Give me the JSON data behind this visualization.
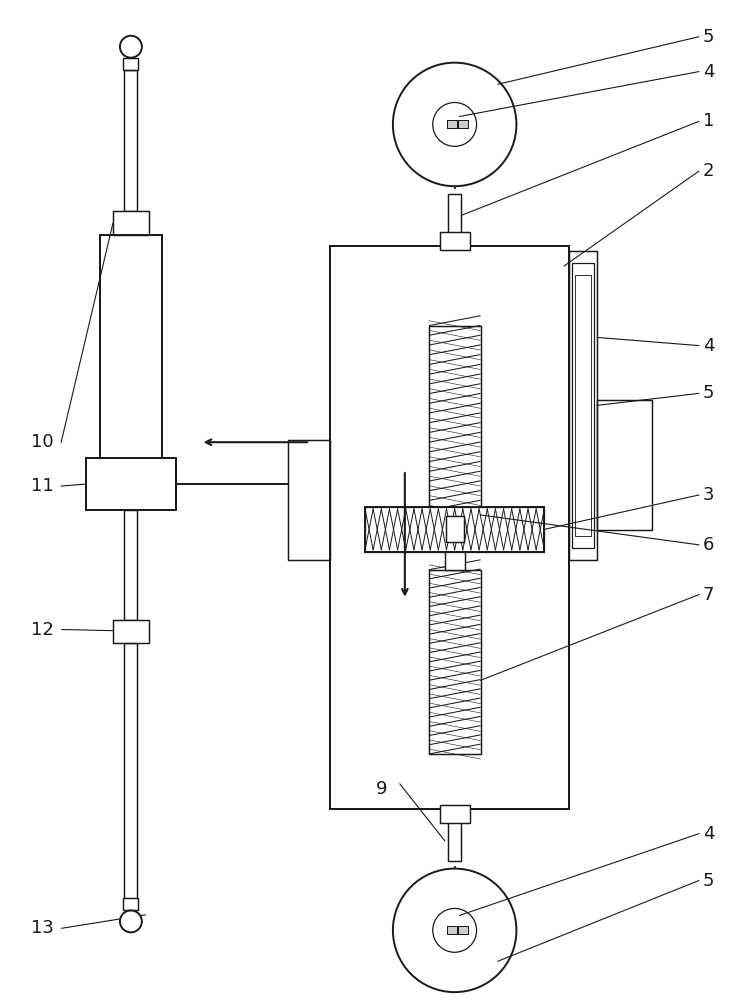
{
  "bg_color": "#ffffff",
  "line_color": "#1a1a1a",
  "lw": 1.4,
  "thin_lw": 0.9,
  "fig_width": 7.32,
  "fig_height": 10.0
}
